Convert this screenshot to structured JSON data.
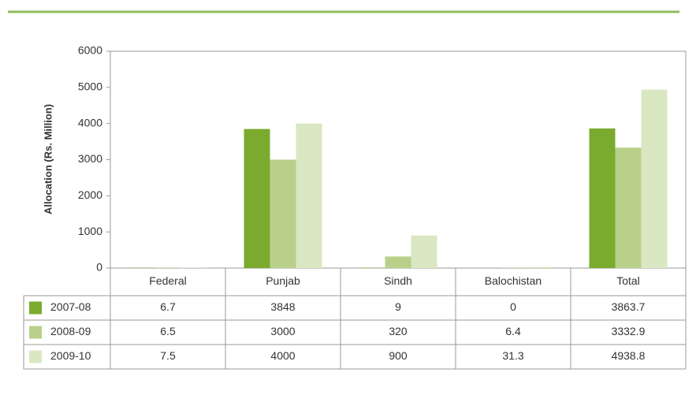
{
  "chart_data": {
    "type": "bar",
    "y_axis_label": "Allocation (Rs. Million)",
    "categories": [
      "Federal",
      "Punjab",
      "Sindh",
      "Balochistan",
      "Total"
    ],
    "series": [
      {
        "name": "2007-08",
        "color": "#7aab2e",
        "values": [
          6.7,
          3848,
          9,
          0,
          3863.7
        ]
      },
      {
        "name": "2008-09",
        "color": "#b9d08a",
        "values": [
          6.5,
          3000,
          320,
          6.4,
          3332.9
        ]
      },
      {
        "name": "2009-10",
        "color": "#d9e8c2",
        "values": [
          7.5,
          4000,
          900,
          31.3,
          4938.8
        ]
      }
    ],
    "ylim": [
      0,
      6000
    ],
    "yticks": [
      0,
      1000,
      2000,
      3000,
      4000,
      5000,
      6000
    ],
    "grid": false
  }
}
